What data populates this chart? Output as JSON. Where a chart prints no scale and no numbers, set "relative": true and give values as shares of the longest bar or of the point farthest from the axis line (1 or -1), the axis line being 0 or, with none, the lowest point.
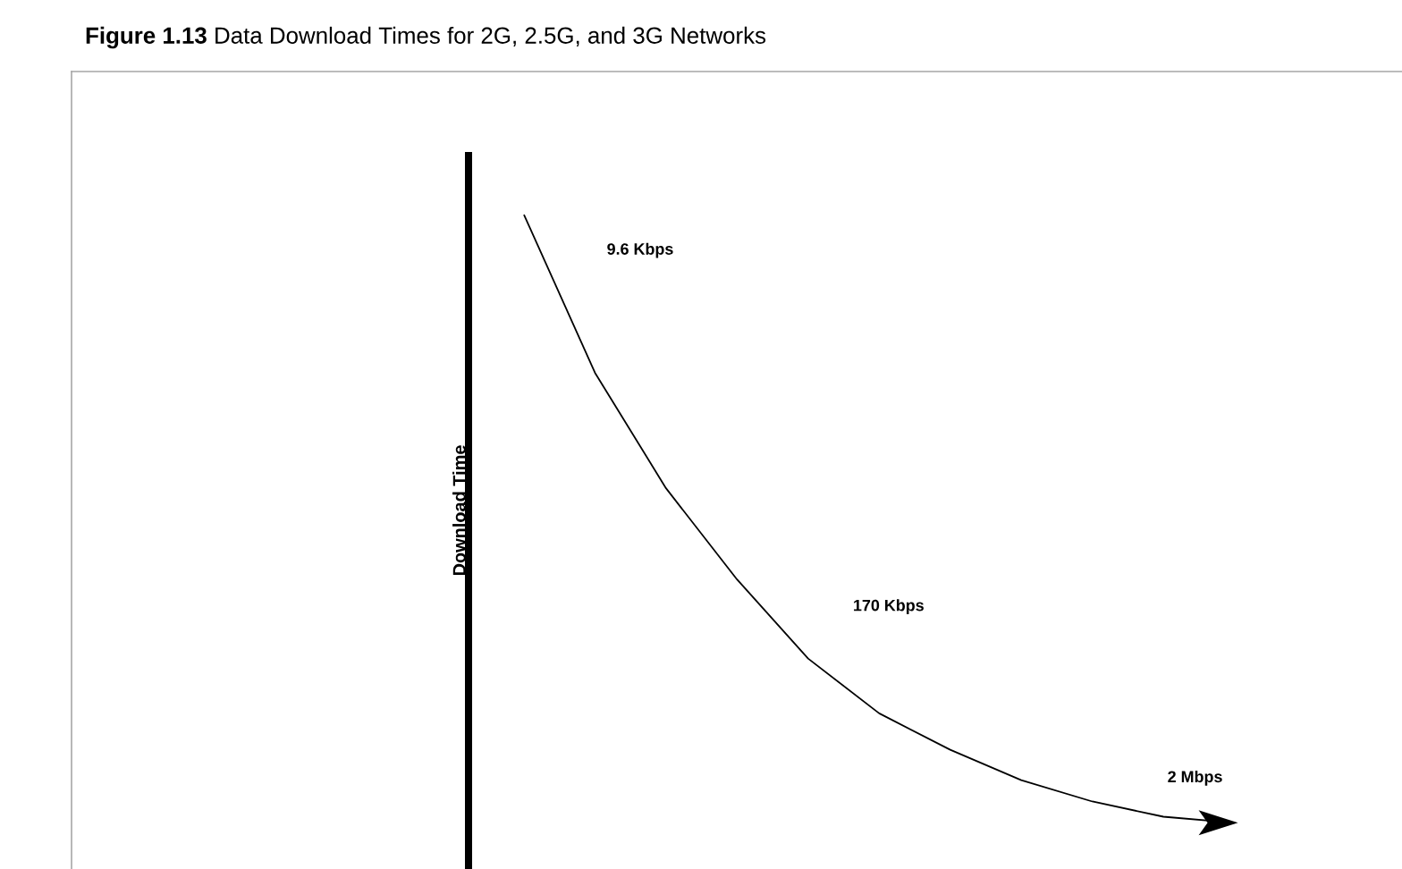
{
  "chart_data": {
    "type": "line",
    "title": "**Figure 1.13** Data Download Times for 2G, 2.5G, and 3G Networks",
    "ylabel": "Download Time",
    "relative": true,
    "color": "#000000",
    "categories": [
      null,
      null,
      null,
      null,
      null,
      null,
      null,
      null,
      null,
      null,
      null
    ],
    "values": [
      1.0,
      0.74,
      0.55,
      0.4,
      0.27,
      0.18,
      0.12,
      0.07,
      0.035,
      0.01,
      0.0
    ],
    "annotations": [
      "9.6 Kbps",
      "170 Kbps",
      "2 Mbps"
    ]
  }
}
